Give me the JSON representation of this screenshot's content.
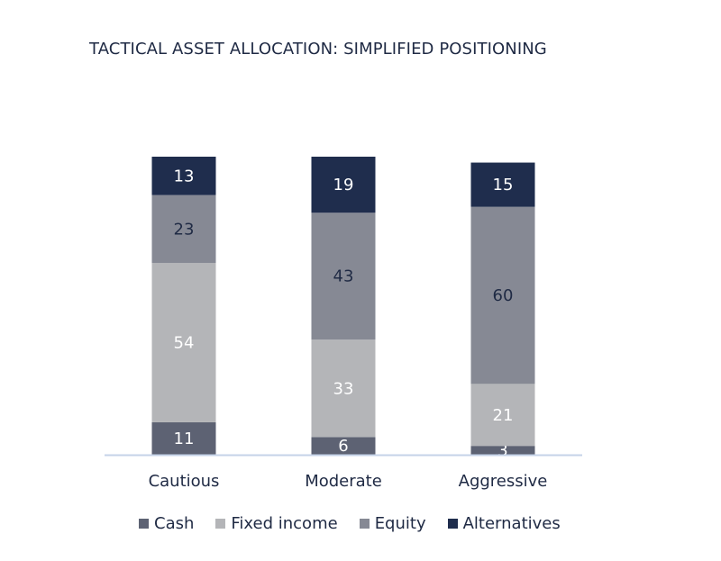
{
  "chart_data": {
    "type": "bar",
    "stacked": true,
    "title": "TACTICAL ASSET ALLOCATION: SIMPLIFIED POSITIONING",
    "categories": [
      "Cautious",
      "Moderate",
      "Aggressive"
    ],
    "series": [
      {
        "name": "Cash",
        "color": "#5d6273",
        "label_color": "#ffffff",
        "values": [
          11,
          6,
          3
        ]
      },
      {
        "name": "Fixed income",
        "color": "#b4b5b8",
        "label_color": "#ffffff",
        "values": [
          54,
          33,
          21
        ]
      },
      {
        "name": "Equity",
        "color": "#868994",
        "label_color": "#1f2a44",
        "values": [
          23,
          43,
          60
        ]
      },
      {
        "name": "Alternatives",
        "color": "#1f2d4d",
        "label_color": "#ffffff",
        "values": [
          13,
          19,
          15
        ]
      }
    ],
    "ylim": [
      0,
      101
    ],
    "xlabel": "",
    "ylabel": "",
    "grid": false,
    "legend_position": "bottom",
    "axis_color": "#c5d3e8"
  }
}
